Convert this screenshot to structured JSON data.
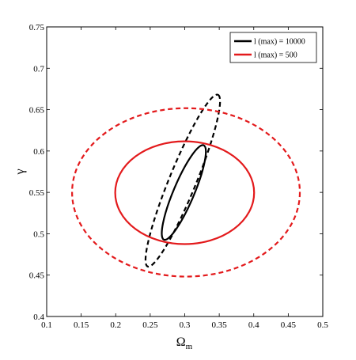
{
  "chart_data": {
    "type": "contour",
    "title": "",
    "xlabel": "Ω",
    "xlabel_sub": "m",
    "ylabel": "γ",
    "xlim": [
      0.1,
      0.5
    ],
    "ylim": [
      0.4,
      0.75
    ],
    "xticks": [
      "0.1",
      "0.15",
      "0.2",
      "0.25",
      "0.3",
      "0.35",
      "0.4",
      "0.45",
      "0.5"
    ],
    "yticks": [
      "0.4",
      "0.45",
      "0.5",
      "0.55",
      "0.6",
      "0.65",
      "0.7",
      "0.75"
    ],
    "grid": false,
    "legend_position": "top-right",
    "legend": [
      {
        "label": "l (max) = 10000",
        "color": "#000000"
      },
      {
        "label": "l (max) = 500",
        "color": "#e31a1c"
      }
    ],
    "series": [
      {
        "name": "l (max) = 10000",
        "color": "#000000",
        "contours": [
          {
            "level": "inner",
            "style": "solid",
            "center": [
              0.2987,
              0.5499
            ],
            "semi_axes": [
              0.0145,
              0.072
            ],
            "x_extent": [
              0.2677,
              0.3297
            ],
            "y_extent": [
              0.4908,
              0.6089
            ]
          },
          {
            "level": "outer",
            "style": "dashed",
            "center": [
              0.2972,
              0.5642
            ],
            "semi_axes": [
              0.0183,
              0.1265
            ],
            "x_extent": [
              0.2464,
              0.348
            ],
            "y_extent": [
              0.4538,
              0.6747
            ]
          }
        ]
      },
      {
        "name": "l (max) = 500",
        "color": "#e31a1c",
        "contours": [
          {
            "level": "inner",
            "style": "solid",
            "center": [
              0.2999,
              0.5496
            ],
            "semi_axes": [
              0.0917,
              0.0678
            ],
            "x_extent": [
              0.208,
              0.3919
            ],
            "y_extent": [
              0.4817,
              0.6175
            ]
          },
          {
            "level": "outer",
            "style": "dashed",
            "center": [
              0.3018,
              0.55
            ],
            "semi_axes": [
              0.1507,
              0.1114
            ],
            "x_extent": [
              0.1511,
              0.4525
            ],
            "y_extent": [
              0.4386,
              0.6614
            ]
          }
        ]
      }
    ]
  }
}
